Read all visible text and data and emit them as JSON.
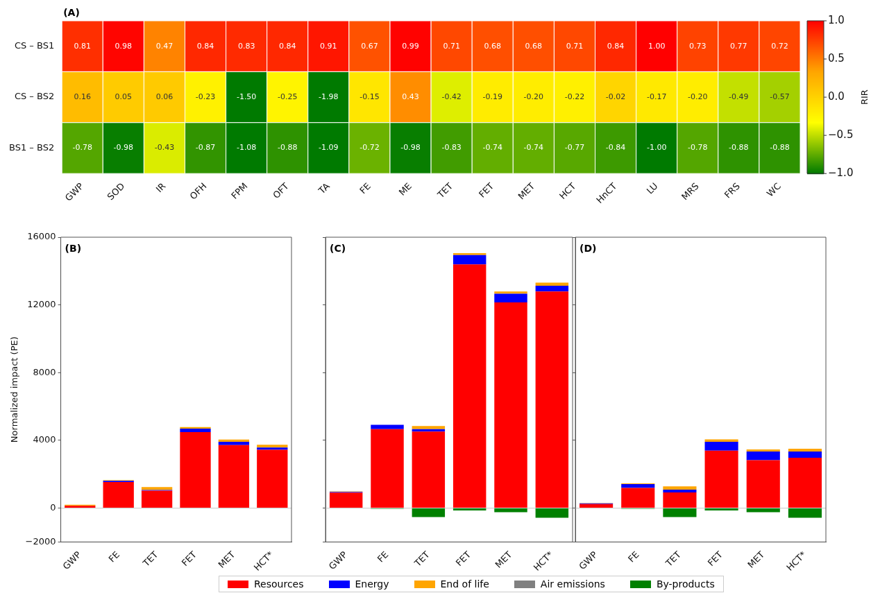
{
  "chart_data": [
    {
      "type": "heatmap",
      "title": "(A)",
      "clabel": "RIR",
      "categories": [
        "GWP",
        "SOD",
        "IR",
        "OFH",
        "FPM",
        "OFT",
        "TA",
        "FE",
        "ME",
        "TET",
        "FET",
        "MET",
        "HCT",
        "HnCT",
        "LU",
        "MRS",
        "FRS",
        "WC"
      ],
      "y_categories": [
        "CS – BS1",
        "CS – BS2",
        "BS1 – BS2"
      ],
      "cells": [
        [
          0.81,
          0.98,
          0.47,
          0.84,
          0.83,
          0.84,
          0.91,
          0.67,
          0.99,
          0.71,
          0.68,
          0.68,
          0.71,
          0.84,
          1.0,
          0.73,
          0.77,
          0.72
        ],
        [
          0.16,
          0.05,
          0.06,
          -0.23,
          -1.5,
          -0.25,
          -1.98,
          -0.15,
          0.43,
          -0.42,
          -0.19,
          -0.2,
          -0.22,
          -0.02,
          -0.17,
          -0.2,
          -0.49,
          -0.57
        ],
        [
          -0.78,
          -0.98,
          -0.43,
          -0.87,
          -1.08,
          -0.88,
          -1.09,
          -0.72,
          -0.98,
          -0.83,
          -0.74,
          -0.74,
          -0.77,
          -0.84,
          -1.0,
          -0.78,
          -0.88,
          -0.88
        ]
      ],
      "cell_labels": [
        [
          "0.81",
          "0.98",
          "0.47",
          "0.84",
          "0.83",
          "0.84",
          "0.91",
          "0.67",
          "0.99",
          "0.71",
          "0.68",
          "0.68",
          "0.71",
          "0.84",
          "1.00",
          "0.73",
          "0.77",
          "0.72"
        ],
        [
          "0.16",
          "0.05",
          "0.06",
          "-0.23",
          "-1.50",
          "-0.25",
          "-1.98",
          "-0.15",
          "0.43",
          "-0.42",
          "-0.19",
          "-0.20",
          "-0.22",
          "-0.02",
          "-0.17",
          "-0.20",
          "-0.49",
          "-0.57"
        ],
        [
          "-0.78",
          "-0.98",
          "-0.43",
          "-0.87",
          "-1.08",
          "-0.88",
          "-1.09",
          "-0.72",
          "-0.98",
          "-0.83",
          "-0.74",
          "-0.74",
          "-0.77",
          "-0.84",
          "-1.00",
          "-0.78",
          "-0.88",
          "-0.88"
        ]
      ],
      "clim": [
        -1,
        1
      ],
      "cticks": [
        {
          "value": -1,
          "label": "−1.0"
        },
        {
          "value": -0.5,
          "label": "−0.5"
        },
        {
          "value": 0,
          "label": "0.0"
        },
        {
          "value": 0.5,
          "label": "0.5"
        },
        {
          "value": 1,
          "label": "1.0"
        }
      ]
    },
    {
      "type": "bar",
      "title": "(B)",
      "ylabel": "Normalized impact (PE)",
      "stacked": true,
      "legend": "bottom",
      "categories": [
        "GWP",
        "FE",
        "TET",
        "FET",
        "MET",
        "HCT*"
      ],
      "series": [
        {
          "name": "Resources",
          "color": "#ff0000",
          "values": [
            140,
            1540,
            1030,
            4490,
            3720,
            3440
          ]
        },
        {
          "name": "Energy",
          "color": "#0000ff",
          "values": [
            0,
            70,
            40,
            200,
            200,
            140
          ]
        },
        {
          "name": "End of life",
          "color": "#ffa500",
          "values": [
            60,
            40,
            170,
            100,
            130,
            160
          ]
        },
        {
          "name": "Air emissions",
          "color": "#808080",
          "values": [
            0,
            0,
            0,
            0,
            0,
            0
          ]
        },
        {
          "name": "By-products",
          "color": "#008000",
          "values": [
            0,
            0,
            0,
            0,
            0,
            0
          ]
        }
      ],
      "ylim": [
        -2000,
        16000
      ],
      "yticks": [
        {
          "value": -2000,
          "label": "−2000"
        },
        0,
        4000,
        8000,
        12000,
        16000
      ],
      "ref_lines": [
        {
          "axis": "y",
          "value": 0,
          "color": "#d3d3d3"
        }
      ]
    },
    {
      "type": "bar",
      "title": "(C)",
      "stacked": true,
      "tick_labels": "x",
      "categories": [
        "GWP",
        "FE",
        "TET",
        "FET",
        "MET",
        "HCT*"
      ],
      "series": [
        {
          "color": "#ff0000",
          "values": [
            920,
            4660,
            4520,
            14390,
            12150,
            12790
          ]
        },
        {
          "color": "#0000ff",
          "values": [
            40,
            260,
            140,
            560,
            510,
            340
          ]
        },
        {
          "color": "#ffa500",
          "values": [
            30,
            null,
            190,
            110,
            130,
            190
          ]
        },
        {
          "color": "#808080",
          "values": [
            0,
            0,
            0,
            0,
            0,
            0
          ]
        },
        {
          "color": "#008000",
          "values": [
            null,
            -40,
            -530,
            -140,
            -240,
            -570
          ]
        }
      ],
      "ylim": [
        -2000,
        16000
      ],
      "yticks": [
        -2000,
        0,
        4000,
        8000,
        12000,
        16000
      ],
      "ref_lines": [
        {
          "axis": "y",
          "value": 0,
          "color": "#d3d3d3"
        }
      ]
    },
    {
      "type": "bar",
      "title": "(D)",
      "stacked": true,
      "tick_labels": "x",
      "categories": [
        "GWP",
        "FE",
        "TET",
        "FET",
        "MET",
        "HCT*"
      ],
      "series": [
        {
          "color": "#ff0000",
          "values": [
            240,
            1190,
            930,
            3390,
            2830,
            2970
          ]
        },
        {
          "color": "#0000ff",
          "values": [
            40,
            230,
            160,
            530,
            510,
            370
          ]
        },
        {
          "color": "#ffa500",
          "values": [
            20,
            40,
            190,
            140,
            130,
            170
          ]
        },
        {
          "color": "#808080",
          "values": [
            0,
            0,
            0,
            0,
            0,
            0
          ]
        },
        {
          "color": "#008000",
          "values": [
            null,
            -40,
            -530,
            -140,
            -240,
            -570
          ]
        }
      ],
      "ylim": [
        -2000,
        16000
      ],
      "yticks": [
        -2000,
        0,
        4000,
        8000,
        12000,
        16000
      ],
      "ref_lines": [
        {
          "axis": "y",
          "value": 0,
          "color": "#d3d3d3"
        }
      ]
    }
  ]
}
